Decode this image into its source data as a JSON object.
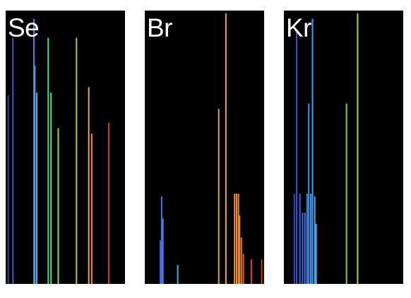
{
  "chart_data": [
    {
      "type": "spectrum",
      "label": "Se",
      "x_range": [
        0,
        1
      ],
      "y_range": [
        0,
        1
      ],
      "lines": [
        {
          "x": 0.013,
          "y": 0.69,
          "color": "#3f3a9a"
        },
        {
          "x": 0.053,
          "y": 0.9,
          "color": "#5150c8"
        },
        {
          "x": 0.232,
          "y": 0.97,
          "color": "#3f88f0"
        },
        {
          "x": 0.24,
          "y": 0.8,
          "color": "#42a0ea"
        },
        {
          "x": 0.256,
          "y": 0.7,
          "color": "#4ab2ee"
        },
        {
          "x": 0.354,
          "y": 0.9,
          "color": "#3ed89a"
        },
        {
          "x": 0.378,
          "y": 0.7,
          "color": "#5adf78"
        },
        {
          "x": 0.44,
          "y": 0.57,
          "color": "#78e25a"
        },
        {
          "x": 0.595,
          "y": 0.9,
          "color": "#b8c63e"
        },
        {
          "x": 0.7,
          "y": 0.72,
          "color": "#f0a43c"
        },
        {
          "x": 0.725,
          "y": 0.55,
          "color": "#f38a2c"
        },
        {
          "x": 0.87,
          "y": 0.59,
          "color": "#d8421a"
        }
      ]
    },
    {
      "type": "spectrum",
      "label": "Br",
      "x_range": [
        0,
        1
      ],
      "y_range": [
        0,
        1
      ],
      "lines": [
        {
          "x": 0.124,
          "y": 0.16,
          "color": "#4a64d6"
        },
        {
          "x": 0.135,
          "y": 0.32,
          "color": "#4f70e0"
        },
        {
          "x": 0.146,
          "y": 0.24,
          "color": "#4f78e6"
        },
        {
          "x": 0.272,
          "y": 0.07,
          "color": "#35b4d6"
        },
        {
          "x": 0.622,
          "y": 0.64,
          "color": "#e0a448"
        },
        {
          "x": 0.683,
          "y": 0.99,
          "color": "#f0a040"
        },
        {
          "x": 0.757,
          "y": 0.33,
          "color": "#f28c2e"
        },
        {
          "x": 0.774,
          "y": 0.33,
          "color": "#f28c2e"
        },
        {
          "x": 0.79,
          "y": 0.33,
          "color": "#f08a2c"
        },
        {
          "x": 0.8,
          "y": 0.25,
          "color": "#ee8229"
        },
        {
          "x": 0.815,
          "y": 0.17,
          "color": "#ea7424"
        },
        {
          "x": 0.832,
          "y": 0.11,
          "color": "#e46a20"
        },
        {
          "x": 0.9,
          "y": 0.09,
          "color": "#d84a1a"
        },
        {
          "x": 0.988,
          "y": 0.09,
          "color": "#c83218"
        }
      ]
    },
    {
      "type": "spectrum",
      "label": "Kr",
      "x_range": [
        0,
        1
      ],
      "y_range": [
        0,
        1
      ],
      "lines": [
        {
          "x": 0.08,
          "y": 0.33,
          "color": "#3048c8"
        },
        {
          "x": 0.1,
          "y": 0.92,
          "color": "#3556d6"
        },
        {
          "x": 0.128,
          "y": 0.33,
          "color": "#3a60e2"
        },
        {
          "x": 0.15,
          "y": 0.26,
          "color": "#3f6ae8"
        },
        {
          "x": 0.17,
          "y": 0.26,
          "color": "#4172ea"
        },
        {
          "x": 0.189,
          "y": 0.33,
          "color": "#4380ec"
        },
        {
          "x": 0.203,
          "y": 0.66,
          "color": "#4490ee"
        },
        {
          "x": 0.22,
          "y": 0.33,
          "color": "#4898ee"
        },
        {
          "x": 0.235,
          "y": 0.97,
          "color": "#46a2ee"
        },
        {
          "x": 0.254,
          "y": 0.32,
          "color": "#48aaee"
        },
        {
          "x": 0.266,
          "y": 0.22,
          "color": "#4ab4ee"
        },
        {
          "x": 0.525,
          "y": 0.66,
          "color": "#7ad648"
        },
        {
          "x": 0.62,
          "y": 0.99,
          "color": "#a8d63c"
        }
      ]
    }
  ]
}
